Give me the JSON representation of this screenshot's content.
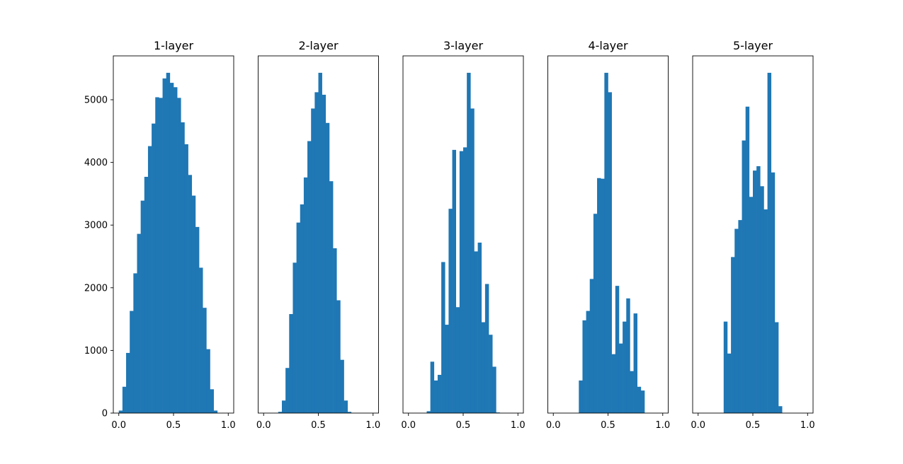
{
  "bar_color": "#1f77b4",
  "chart_data": [
    {
      "type": "bar",
      "title": "1-layer",
      "xlim": [
        -0.05,
        1.05
      ],
      "ylim": [
        0,
        5700
      ],
      "xticks": [
        "0.0",
        "0.5",
        "1.0"
      ],
      "yticks": [
        "0",
        "1000",
        "2000",
        "3000",
        "4000",
        "5000"
      ],
      "bin_width": 0.03333,
      "bins_x": [
        0.0,
        0.0333,
        0.0667,
        0.1,
        0.1333,
        0.1667,
        0.2,
        0.2333,
        0.2667,
        0.3,
        0.3333,
        0.3667,
        0.4,
        0.4333,
        0.4667,
        0.5,
        0.5333,
        0.5667,
        0.6,
        0.6333,
        0.6667,
        0.7,
        0.7333,
        0.7667,
        0.8,
        0.8333,
        0.8667,
        0.9,
        0.9333,
        0.9667
      ],
      "values": [
        40,
        420,
        960,
        1630,
        2230,
        2860,
        3390,
        3770,
        4260,
        4620,
        5040,
        5030,
        5340,
        5430,
        5270,
        5200,
        5030,
        4640,
        4290,
        3800,
        3470,
        2970,
        2320,
        1680,
        1020,
        380,
        40,
        0,
        0,
        0
      ]
    },
    {
      "type": "bar",
      "title": "2-layer",
      "xlim": [
        -0.05,
        1.05
      ],
      "ylim": [
        0,
        5700
      ],
      "xticks": [
        "0.0",
        "0.5",
        "1.0"
      ],
      "yticks": [],
      "bin_width": 0.03333,
      "bins_x": [
        0.1333,
        0.1667,
        0.2,
        0.2333,
        0.2667,
        0.3,
        0.3333,
        0.3667,
        0.4,
        0.4333,
        0.4667,
        0.5,
        0.5333,
        0.5667,
        0.6,
        0.6333,
        0.6667,
        0.7,
        0.7333,
        0.7667
      ],
      "values": [
        20,
        200,
        720,
        1580,
        2400,
        3040,
        3330,
        3760,
        4340,
        4860,
        5120,
        5430,
        5080,
        4630,
        3700,
        2630,
        1800,
        850,
        200,
        20
      ]
    },
    {
      "type": "bar",
      "title": "3-layer",
      "xlim": [
        -0.05,
        1.05
      ],
      "ylim": [
        0,
        5700
      ],
      "xticks": [
        "0.0",
        "0.5",
        "1.0"
      ],
      "yticks": [],
      "bin_width": 0.03333,
      "bins_x": [
        0.1667,
        0.2,
        0.2333,
        0.2667,
        0.3,
        0.3333,
        0.3667,
        0.4,
        0.4333,
        0.4667,
        0.5,
        0.5333,
        0.5667,
        0.6,
        0.6333,
        0.6667,
        0.7,
        0.7333,
        0.7667,
        0.8
      ],
      "values": [
        30,
        820,
        520,
        610,
        2410,
        1410,
        3260,
        4200,
        1690,
        4180,
        4240,
        5430,
        4860,
        2580,
        2720,
        1450,
        2060,
        1250,
        740,
        10
      ]
    },
    {
      "type": "bar",
      "title": "4-layer",
      "xlim": [
        -0.05,
        1.05
      ],
      "ylim": [
        0,
        5700
      ],
      "xticks": [
        "0.0",
        "0.5",
        "1.0"
      ],
      "yticks": [],
      "bin_width": 0.03333,
      "bins_x": [
        0.2333,
        0.2667,
        0.3,
        0.3333,
        0.3667,
        0.4,
        0.4333,
        0.4667,
        0.5,
        0.5333,
        0.5667,
        0.6,
        0.6333,
        0.6667,
        0.7,
        0.7333,
        0.7667,
        0.8
      ],
      "values": [
        520,
        1480,
        1630,
        2140,
        3180,
        3750,
        3740,
        5430,
        5120,
        940,
        2030,
        1110,
        1460,
        1830,
        670,
        1590,
        420,
        360
      ]
    },
    {
      "type": "bar",
      "title": "5-layer",
      "xlim": [
        -0.05,
        1.05
      ],
      "ylim": [
        0,
        5700
      ],
      "xticks": [
        "0.0",
        "0.5",
        "1.0"
      ],
      "yticks": [],
      "bin_width": 0.03333,
      "bins_x": [
        0.2333,
        0.2667,
        0.3,
        0.3333,
        0.3667,
        0.4,
        0.4333,
        0.4667,
        0.5,
        0.5333,
        0.5667,
        0.6,
        0.6333,
        0.6667,
        0.7,
        0.7333
      ],
      "values": [
        1460,
        950,
        2490,
        2940,
        3080,
        4350,
        4890,
        3450,
        3870,
        3940,
        3620,
        3250,
        5430,
        3840,
        1450,
        110
      ]
    }
  ]
}
